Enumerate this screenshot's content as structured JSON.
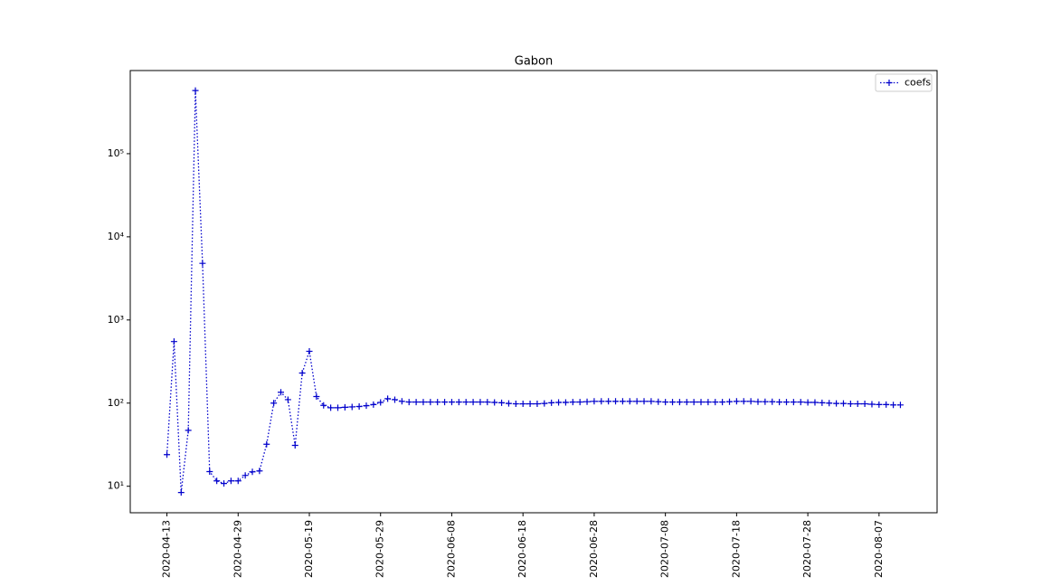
{
  "chart_data": {
    "type": "line",
    "title": "Gabon",
    "categories": [
      "2020-04-13",
      null,
      null,
      null,
      null,
      null,
      null,
      null,
      null,
      null,
      "2020-04-29",
      null,
      null,
      null,
      null,
      null,
      null,
      null,
      null,
      null,
      "2020-05-19",
      null,
      null,
      null,
      null,
      null,
      null,
      null,
      null,
      null,
      "2020-05-29",
      null,
      null,
      null,
      null,
      null,
      null,
      null,
      null,
      null,
      "2020-06-08",
      null,
      null,
      null,
      null,
      null,
      null,
      null,
      null,
      null,
      "2020-06-18",
      null,
      null,
      null,
      null,
      null,
      null,
      null,
      null,
      null,
      "2020-06-28",
      null,
      null,
      null,
      null,
      null,
      null,
      null,
      null,
      null,
      "2020-07-08",
      null,
      null,
      null,
      null,
      null,
      null,
      null,
      null,
      null,
      "2020-07-18",
      null,
      null,
      null,
      null,
      null,
      null,
      null,
      null,
      null,
      "2020-07-28",
      null,
      null,
      null,
      null,
      null,
      null,
      null,
      null,
      null,
      "2020-08-07",
      null,
      null,
      null
    ],
    "series": [
      {
        "name": "coefs",
        "color": "#0000cc",
        "values": [
          24,
          550,
          8.4,
          47,
          575000,
          4800,
          15,
          11.6,
          10.8,
          11.6,
          11.6,
          13.5,
          14.9,
          15.3,
          32,
          100,
          135,
          110,
          31,
          230,
          420,
          120,
          94,
          88,
          88,
          89,
          90,
          91,
          93,
          96,
          102,
          113,
          110,
          105,
          103,
          103,
          103,
          103,
          103,
          103,
          103,
          103,
          103,
          103,
          103,
          103,
          102,
          101,
          99,
          98,
          98,
          98,
          98,
          99,
          101,
          102,
          102,
          103,
          103,
          104,
          105,
          105,
          105,
          105,
          105,
          105,
          105,
          105,
          105,
          104,
          103,
          103,
          103,
          103,
          103,
          103,
          103,
          103,
          103,
          104,
          105,
          105,
          105,
          104,
          104,
          104,
          103,
          103,
          103,
          103,
          102,
          102,
          101,
          100,
          99,
          99,
          98,
          98,
          98,
          97,
          96,
          96,
          95,
          95
        ]
      }
    ],
    "yscale": "log",
    "ylim": [
      4.8,
      1000000
    ],
    "yticks": [
      {
        "value": 10,
        "label": "10¹"
      },
      {
        "value": 100,
        "label": "10²"
      },
      {
        "value": 1000,
        "label": "10³"
      },
      {
        "value": 10000,
        "label": "10⁴"
      },
      {
        "value": 100000,
        "label": "10⁵"
      }
    ],
    "legend": "upper right"
  }
}
